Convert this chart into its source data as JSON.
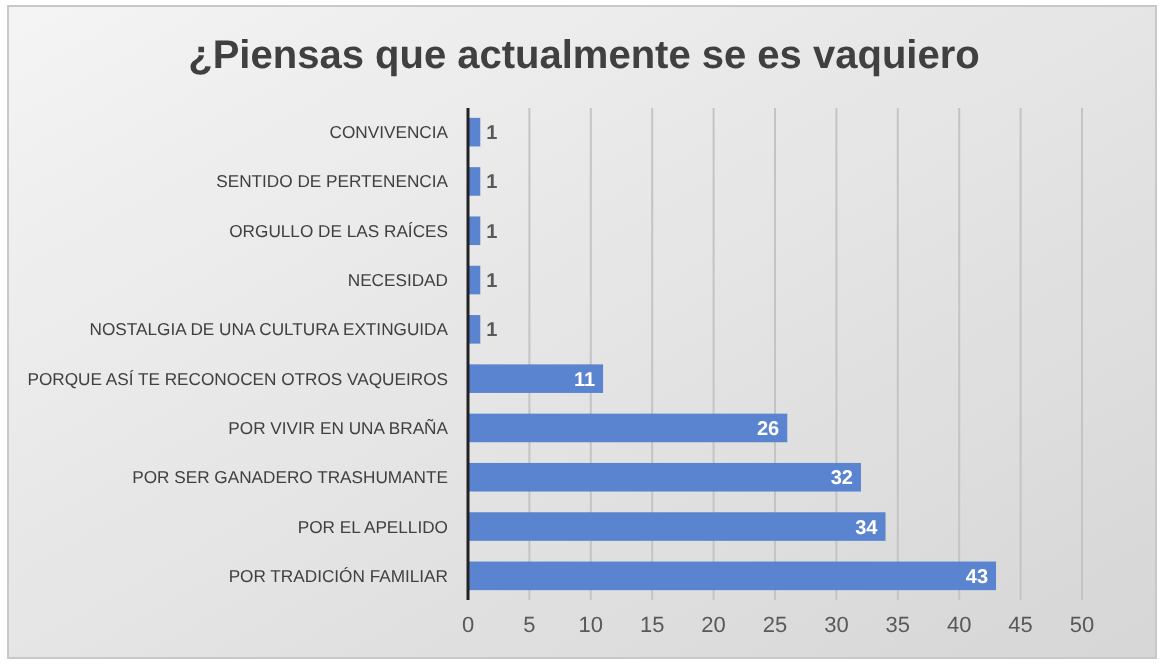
{
  "chart_data": {
    "type": "bar",
    "orientation": "horizontal",
    "title": "¿Piensas que actualmente se es vaquiero",
    "categories": [
      "CONVIVENCIA",
      "SENTIDO DE PERTENENCIA",
      "ORGULLO DE LAS RAÍCES",
      "NECESIDAD",
      "NOSTALGIA DE UNA CULTURA EXTINGUIDA",
      "PORQUE ASÍ TE RECONOCEN OTROS VAQUEIROS",
      "POR VIVIR EN UNA BRAÑA",
      "POR SER GANADERO TRASHUMANTE",
      "POR EL APELLIDO",
      "POR TRADICIÓN FAMILIAR"
    ],
    "values": [
      1,
      1,
      1,
      1,
      1,
      11,
      26,
      32,
      34,
      43
    ],
    "color": "#5b84d0",
    "xlim": [
      0,
      50
    ],
    "xticks": [
      0,
      5,
      10,
      15,
      20,
      25,
      30,
      35,
      40,
      45,
      50
    ],
    "grid": "x",
    "data_labels": true
  }
}
